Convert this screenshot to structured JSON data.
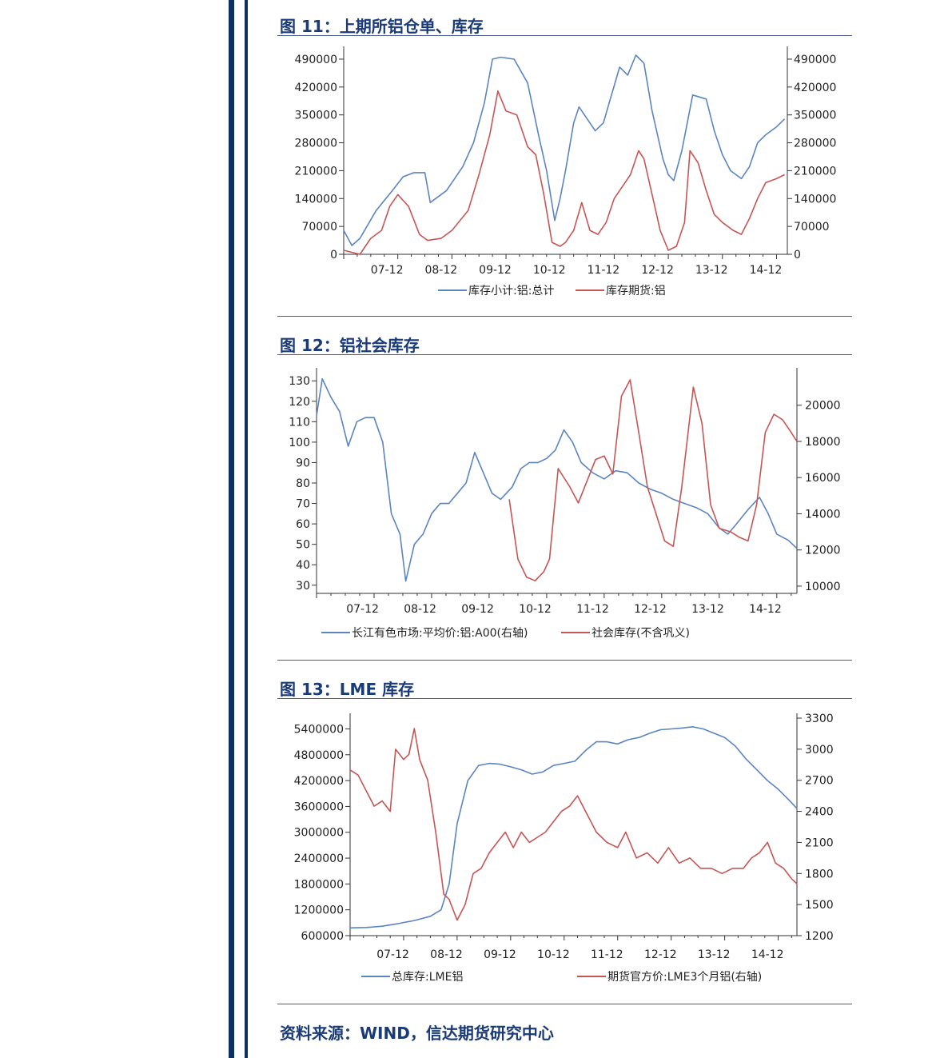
{
  "figures": [
    {
      "title": "图 11：上期所铝仓单、库存",
      "chart_data": {
        "type": "line",
        "x_ticks": [
          "07-12",
          "08-12",
          "09-12",
          "10-12",
          "11-12",
          "12-12",
          "13-12",
          "14-12"
        ],
        "y_left": {
          "ticks": [
            "490000",
            "420000",
            "350000",
            "280000",
            "210000",
            "140000",
            "70000",
            "0"
          ],
          "lim": [
            0,
            510000
          ]
        },
        "y_right": {
          "ticks": [
            "490000",
            "420000",
            "350000",
            "280000",
            "210000",
            "140000",
            "70000",
            "0"
          ],
          "lim": [
            0,
            510000
          ]
        },
        "x_range": [
          2007.0,
          2015.2
        ],
        "series": [
          {
            "name": "库存小计:铝:总计",
            "color": "#5b84c2",
            "axis": "left",
            "x": [
              2007.0,
              2007.15,
              2007.3,
              2007.6,
              2007.9,
              2008.1,
              2008.3,
              2008.5,
              2008.6,
              2008.8,
              2008.9,
              2009.2,
              2009.4,
              2009.6,
              2009.75,
              2009.9,
              2010.15,
              2010.4,
              2010.6,
              2010.75,
              2010.9,
              2011.0,
              2011.1,
              2011.25,
              2011.35,
              2011.5,
              2011.65,
              2011.8,
              2011.95,
              2012.1,
              2012.25,
              2012.4,
              2012.55,
              2012.7,
              2012.9,
              2013.0,
              2013.1,
              2013.25,
              2013.45,
              2013.7,
              2013.85,
              2014.0,
              2014.15,
              2014.35,
              2014.5,
              2014.65,
              2014.8,
              2015.0,
              2015.15
            ],
            "y": [
              60000,
              22000,
              40000,
              110000,
              160000,
              195000,
              205000,
              205000,
              130000,
              150000,
              160000,
              220000,
              280000,
              380000,
              490000,
              495000,
              490000,
              430000,
              300000,
              210000,
              85000,
              140000,
              210000,
              330000,
              370000,
              340000,
              310000,
              330000,
              400000,
              470000,
              450000,
              500000,
              480000,
              360000,
              240000,
              200000,
              185000,
              260000,
              400000,
              390000,
              310000,
              250000,
              210000,
              190000,
              220000,
              280000,
              300000,
              320000,
              340000
            ]
          },
          {
            "name": "库存期货:铝",
            "color": "#c95454",
            "axis": "left",
            "x": [
              2007.0,
              2007.3,
              2007.5,
              2007.7,
              2007.85,
              2008.0,
              2008.2,
              2008.4,
              2008.55,
              2008.8,
              2009.0,
              2009.3,
              2009.5,
              2009.7,
              2009.85,
              2010.0,
              2010.2,
              2010.4,
              2010.55,
              2010.7,
              2010.85,
              2011.0,
              2011.1,
              2011.25,
              2011.4,
              2011.55,
              2011.7,
              2011.85,
              2012.0,
              2012.15,
              2012.3,
              2012.45,
              2012.55,
              2012.7,
              2012.85,
              2013.0,
              2013.15,
              2013.3,
              2013.4,
              2013.55,
              2013.7,
              2013.85,
              2014.0,
              2014.2,
              2014.35,
              2014.5,
              2014.65,
              2014.8,
              2015.0,
              2015.15
            ],
            "y": [
              10000,
              0,
              40000,
              60000,
              120000,
              150000,
              120000,
              50000,
              35000,
              40000,
              60000,
              110000,
              200000,
              300000,
              410000,
              360000,
              350000,
              270000,
              250000,
              150000,
              30000,
              20000,
              30000,
              60000,
              130000,
              60000,
              50000,
              80000,
              140000,
              170000,
              200000,
              260000,
              240000,
              150000,
              60000,
              10000,
              20000,
              80000,
              260000,
              230000,
              160000,
              100000,
              80000,
              60000,
              50000,
              90000,
              140000,
              180000,
              190000,
              200000
            ]
          }
        ]
      },
      "legend": [
        "库存小计:铝:总计",
        "库存期货:铝"
      ]
    },
    {
      "title": "图 12：铝社会库存",
      "chart_data": {
        "type": "line",
        "x_ticks": [
          "07-12",
          "08-12",
          "09-12",
          "10-12",
          "11-12",
          "12-12",
          "13-12",
          "14-12"
        ],
        "y_left": {
          "ticks": [
            "130",
            "120",
            "110",
            "100",
            "90",
            "80",
            "70",
            "60",
            "50",
            "40",
            "30"
          ],
          "lim": [
            26,
            134
          ]
        },
        "y_right": {
          "ticks": [
            "20000",
            "18000",
            "16000",
            "14000",
            "12000",
            "10000"
          ],
          "lim": [
            9600,
            21800
          ]
        },
        "x_range": [
          2007.0,
          2015.35
        ],
        "series": [
          {
            "name": "长江有色市场:平均价:铝:A00(右轴)",
            "color": "#5b84c2",
            "axis": "left",
            "x": [
              2007.0,
              2007.1,
              2007.25,
              2007.4,
              2007.55,
              2007.7,
              2007.85,
              2008.0,
              2008.15,
              2008.3,
              2008.45,
              2008.55,
              2008.7,
              2008.85,
              2009.0,
              2009.15,
              2009.3,
              2009.45,
              2009.6,
              2009.75,
              2009.9,
              2010.05,
              2010.2,
              2010.4,
              2010.55,
              2010.7,
              2010.85,
              2011.0,
              2011.15,
              2011.3,
              2011.45,
              2011.6,
              2011.8,
              2012.0,
              2012.2,
              2012.4,
              2012.6,
              2012.8,
              2013.0,
              2013.2,
              2013.4,
              2013.6,
              2013.8,
              2014.0,
              2014.15,
              2014.3,
              2014.5,
              2014.7,
              2014.85,
              2015.0,
              2015.2,
              2015.35
            ],
            "y": [
              113,
              131,
              122,
              115,
              98,
              110,
              112,
              112,
              100,
              65,
              55,
              32,
              50,
              55,
              65,
              70,
              70,
              75,
              80,
              95,
              85,
              75,
              72,
              78,
              87,
              90,
              90,
              92,
              96,
              106,
              100,
              90,
              85,
              82,
              86,
              85,
              80,
              77,
              75,
              72,
              70,
              68,
              65,
              58,
              55,
              60,
              67,
              73,
              65,
              55,
              52,
              48
            ]
          },
          {
            "name": "社会库存(不含巩义)",
            "color": "#c95454",
            "axis": "right",
            "x": [
              2010.35,
              2010.5,
              2010.65,
              2010.8,
              2010.95,
              2011.05,
              2011.2,
              2011.4,
              2011.55,
              2011.7,
              2011.85,
              2012.0,
              2012.15,
              2012.3,
              2012.45,
              2012.6,
              2012.75,
              2012.9,
              2013.05,
              2013.2,
              2013.35,
              2013.55,
              2013.7,
              2013.85,
              2014.0,
              2014.2,
              2014.35,
              2014.5,
              2014.65,
              2014.8,
              2014.95,
              2015.1,
              2015.25,
              2015.35
            ],
            "y": [
              14800,
              11500,
              10500,
              10300,
              10800,
              11500,
              16500,
              15500,
              14600,
              15800,
              17000,
              17200,
              16200,
              20500,
              21400,
              18500,
              15500,
              14000,
              12500,
              12200,
              15500,
              21000,
              19000,
              14500,
              13200,
              13000,
              12700,
              12500,
              14500,
              18500,
              19500,
              19200,
              18500,
              18000
            ]
          }
        ]
      },
      "legend": [
        "长江有色市场:平均价:铝:A00(右轴)",
        "社会库存(不含巩义)"
      ]
    },
    {
      "title": "图 13：LME 库存",
      "chart_data": {
        "type": "line",
        "x_ticks": [
          "07-12",
          "08-12",
          "09-12",
          "10-12",
          "11-12",
          "12-12",
          "13-12",
          "14-12"
        ],
        "y_left": {
          "ticks": [
            "5400000",
            "4800000",
            "4200000",
            "3600000",
            "3000000",
            "2400000",
            "1800000",
            "1200000",
            "600000"
          ],
          "lim": [
            600000,
            5650000
          ]
        },
        "y_right": {
          "ticks": [
            "3300",
            "3000",
            "2700",
            "2400",
            "2100",
            "1800",
            "1500",
            "1200"
          ],
          "lim": [
            1200,
            3300
          ]
        },
        "x_range": [
          2007.0,
          2015.35
        ],
        "series": [
          {
            "name": "总库存:LME铝",
            "color": "#5b84c2",
            "axis": "left",
            "x": [
              2007.0,
              2007.3,
              2007.6,
              2007.9,
              2008.2,
              2008.5,
              2008.7,
              2008.85,
              2009.0,
              2009.2,
              2009.4,
              2009.6,
              2009.8,
              2010.0,
              2010.2,
              2010.4,
              2010.6,
              2010.8,
              2011.0,
              2011.2,
              2011.4,
              2011.6,
              2011.8,
              2012.0,
              2012.2,
              2012.4,
              2012.6,
              2012.8,
              2013.0,
              2013.2,
              2013.4,
              2013.6,
              2013.8,
              2014.0,
              2014.2,
              2014.4,
              2014.6,
              2014.8,
              2015.0,
              2015.2,
              2015.35
            ],
            "y": [
              780000,
              790000,
              820000,
              880000,
              950000,
              1050000,
              1200000,
              1800000,
              3200000,
              4200000,
              4550000,
              4600000,
              4580000,
              4520000,
              4450000,
              4350000,
              4400000,
              4550000,
              4600000,
              4650000,
              4900000,
              5100000,
              5100000,
              5050000,
              5150000,
              5200000,
              5300000,
              5380000,
              5400000,
              5420000,
              5450000,
              5400000,
              5300000,
              5200000,
              5000000,
              4700000,
              4450000,
              4200000,
              4000000,
              3750000,
              3550000
            ]
          },
          {
            "name": "期货官方价:LME3个月铝(右轴)",
            "color": "#c95454",
            "axis": "right",
            "x": [
              2007.0,
              2007.15,
              2007.3,
              2007.45,
              2007.6,
              2007.75,
              2007.85,
              2008.0,
              2008.1,
              2008.2,
              2008.3,
              2008.45,
              2008.6,
              2008.75,
              2008.85,
              2009.0,
              2009.15,
              2009.3,
              2009.45,
              2009.6,
              2009.75,
              2009.9,
              2010.05,
              2010.2,
              2010.35,
              2010.5,
              2010.65,
              2010.8,
              2010.95,
              2011.1,
              2011.25,
              2011.4,
              2011.6,
              2011.8,
              2012.0,
              2012.15,
              2012.35,
              2012.55,
              2012.75,
              2012.95,
              2013.15,
              2013.35,
              2013.55,
              2013.75,
              2013.95,
              2014.15,
              2014.35,
              2014.5,
              2014.65,
              2014.8,
              2014.95,
              2015.1,
              2015.25,
              2015.35
            ],
            "y": [
              2800,
              2750,
              2600,
              2450,
              2500,
              2400,
              3000,
              2900,
              2950,
              3200,
              2900,
              2700,
              2200,
              1600,
              1550,
              1350,
              1500,
              1800,
              1850,
              2000,
              2100,
              2200,
              2050,
              2200,
              2100,
              2150,
              2200,
              2300,
              2400,
              2450,
              2550,
              2400,
              2200,
              2100,
              2050,
              2200,
              1950,
              2000,
              1900,
              2050,
              1900,
              1950,
              1850,
              1850,
              1800,
              1850,
              1850,
              1950,
              2000,
              2100,
              1900,
              1850,
              1750,
              1700
            ]
          }
        ]
      },
      "legend": [
        "总库存:LME铝",
        "期货官方价:LME3个月铝(右轴)"
      ]
    }
  ],
  "source": "资料来源：WIND，信达期货研究中心"
}
